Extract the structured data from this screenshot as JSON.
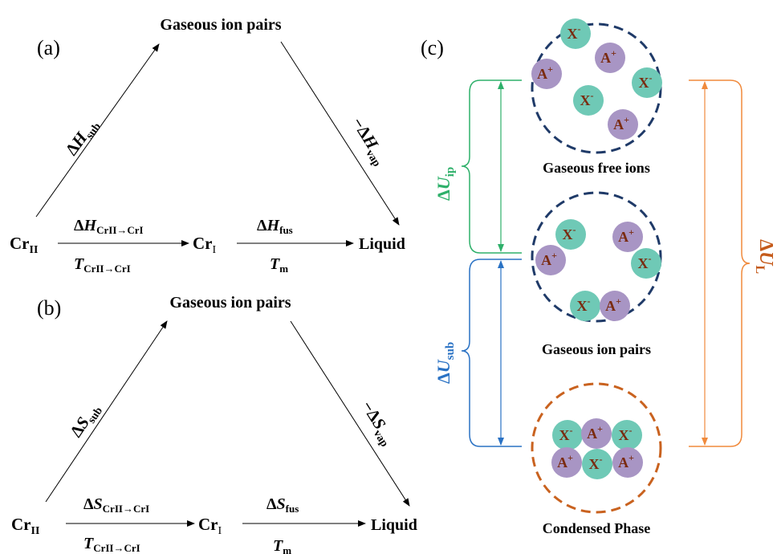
{
  "panel_a": {
    "label": "(a)",
    "top": "Gaseous ion pairs",
    "left": "Cr",
    "left_sub": "II",
    "mid": "Cr",
    "mid_sub": "I",
    "right": "Liquid",
    "arrow_up": {
      "delta": "Δ",
      "sym": "H",
      "sub": "sub"
    },
    "arrow_down": {
      "delta": "−Δ",
      "sym": "H",
      "sub": "vap"
    },
    "arrow_trans": {
      "delta": "Δ",
      "sym": "H",
      "sub": "CrII→CrI"
    },
    "arrow_trans_T": {
      "sym": "T",
      "sub": "CrII→CrI"
    },
    "arrow_fus": {
      "delta": "Δ",
      "sym": "H",
      "sub": "fus"
    },
    "arrow_fus_T": {
      "sym": "T",
      "sub": "m"
    }
  },
  "panel_b": {
    "label": "(b)",
    "top": "Gaseous ion pairs",
    "left": "Cr",
    "left_sub": "II",
    "mid": "Cr",
    "mid_sub": "I",
    "right": "Liquid",
    "arrow_up": {
      "delta": "Δ",
      "sym": "S",
      "sub": "sub"
    },
    "arrow_down": {
      "delta": "−Δ",
      "sym": "S",
      "sub": "vap"
    },
    "arrow_trans": {
      "delta": "Δ",
      "sym": "S",
      "sub": "CrII→CrI"
    },
    "arrow_trans_T": {
      "sym": "T",
      "sub": "CrII→CrI"
    },
    "arrow_fus": {
      "delta": "Δ",
      "sym": "S",
      "sub": "fus"
    },
    "arrow_fus_T": {
      "sym": "T",
      "sub": "m"
    }
  },
  "panel_c": {
    "label": "(c)",
    "state_top": "Gaseous free ions",
    "state_mid": "Gaseous ion pairs",
    "state_bot": "Condensed  Phase",
    "anion": {
      "sym": "X",
      "charge": "-"
    },
    "cation": {
      "sym": "A",
      "charge": "+"
    },
    "u_ip": {
      "delta": "Δ",
      "sym": "U",
      "sub": "ip"
    },
    "u_sub": {
      "delta": "Δ",
      "sym": "U",
      "sub": "sub"
    },
    "u_l": {
      "delta": "Δ",
      "sym": "U",
      "sub": "L"
    }
  },
  "colors": {
    "ip": "#2eb06a",
    "sub": "#2a72c4",
    "lattice": "#f08a3c",
    "lattice_text": "#c55a1a",
    "gas_circle": "#1f3a68",
    "condensed_circle": "#c9621f",
    "anion_fill": "#6fc9b6",
    "cation_fill": "#a895c4"
  }
}
